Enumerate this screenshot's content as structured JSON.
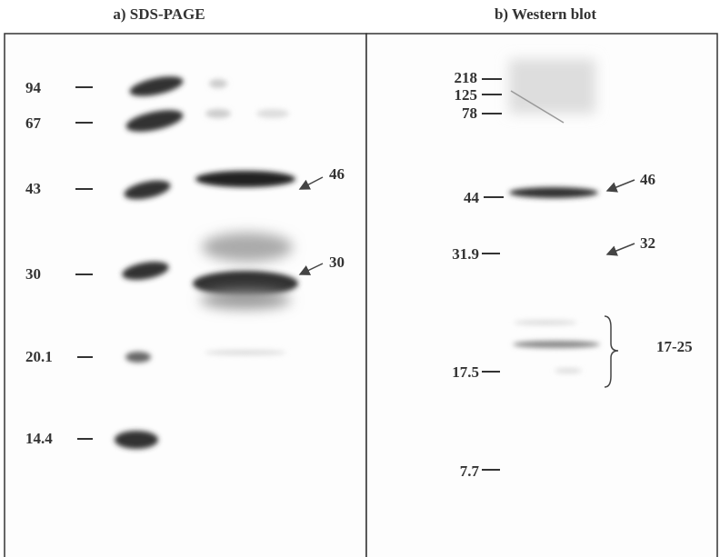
{
  "panels": [
    {
      "title": "a) SDS-PAGE",
      "markers": [
        "94",
        "67",
        "43",
        "30",
        "20.1",
        "14.4"
      ],
      "annotations": [
        "46",
        "30"
      ]
    },
    {
      "title": "b) Western blot",
      "markers": [
        "218",
        "125",
        "78",
        "44",
        "31.9",
        "17.5",
        "7.7"
      ],
      "annotations": [
        "46",
        "32",
        "17-25"
      ]
    }
  ]
}
